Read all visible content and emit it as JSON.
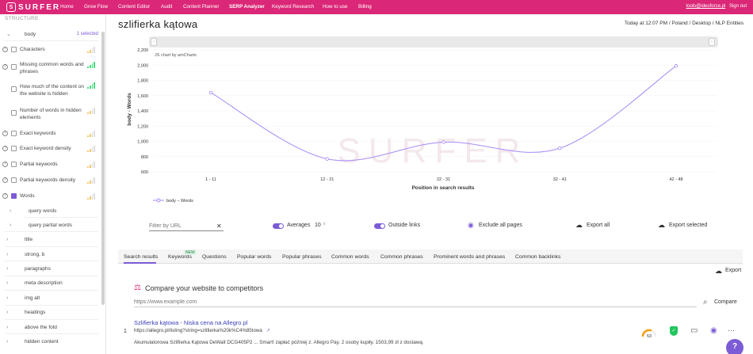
{
  "topbar": {
    "logo_text": "SURFER",
    "logo_mark": "S",
    "nav": [
      "Home",
      "Grow Flow",
      "Content Editor",
      "Audit",
      "Content Planner",
      "SERP Analyzer",
      "Keyword Research",
      "How to use",
      "Billing"
    ],
    "active_nav": "SERP Analyzer",
    "email": "tools@ideoforce.pl",
    "signout": "Sign out",
    "bg_color": "#db2777"
  },
  "sidebar": {
    "title": "STRUCTURE",
    "body_label": "body",
    "body_selected": "1 selected",
    "items": [
      {
        "label": "Characters",
        "help": true,
        "checked": false
      },
      {
        "label": "Missing common words and phrases",
        "help": true,
        "checked": false
      },
      {
        "label": "How much of the content on the website is hidden",
        "help": false,
        "checked": false
      },
      {
        "label": "Number of words in hidden elements",
        "help": false,
        "checked": false
      },
      {
        "label": "Exact keywords",
        "help": true,
        "checked": false
      },
      {
        "label": "Exact keyword density",
        "help": true,
        "checked": false
      },
      {
        "label": "Partial keywords",
        "help": true,
        "checked": false
      },
      {
        "label": "Partial keywords density",
        "help": true,
        "checked": false
      },
      {
        "label": "Words",
        "help": true,
        "checked": true
      }
    ],
    "sub_items": [
      "query words",
      "query partial words"
    ],
    "sections": [
      "title",
      "strong, b",
      "paragraphs",
      "meta description",
      "img alt",
      "headings",
      "above the fold",
      "hidden content"
    ]
  },
  "header": {
    "title": "szlifierka kątowa",
    "meta": "Today at 12:07 PM / Poland / Desktop / NLP Entities"
  },
  "chart_data": {
    "type": "line",
    "watermark": "SURFER",
    "amcharts_label": "JS chart by amCharts",
    "ylabel": "body - Words",
    "xlabel": "Position in search results",
    "categories": [
      "1 - 11",
      "12 - 21",
      "22 - 31",
      "32 - 41",
      "42 - 48"
    ],
    "y_ticks": [
      "2,200",
      "2,000",
      "1,800",
      "1,600",
      "1,400",
      "1,200",
      "1,000",
      "800",
      "600"
    ],
    "ylim": [
      600,
      2200
    ],
    "series": [
      {
        "name": "body – Words",
        "values": [
          1640,
          770,
          990,
          910,
          1990
        ]
      }
    ],
    "legend_position": "bottom-left",
    "line_color": "#a78bfa"
  },
  "controls": {
    "filter_placeholder": "Filter by URL",
    "averages_label": "Averages",
    "averages_value": "10",
    "outside_links_label": "Outside links",
    "exclude_all": "Exclude all pages",
    "export_all": "Export all",
    "export_selected": "Export selected"
  },
  "tabs": {
    "items": [
      "Search results",
      "Keywords",
      "Questions",
      "Popular words",
      "Popular phrases",
      "Common words",
      "Common phrases",
      "Prominent words and phrases",
      "Common backlinks"
    ],
    "new_badge": "NEW",
    "active": "Search results"
  },
  "results": {
    "export_label": "Export",
    "compare_title": "Compare your website to competitors",
    "url_placeholder": "https://www.example.com",
    "compare_button": "Compare",
    "rows": [
      {
        "num": "1",
        "title": "Szlifierka kątowa - Niska cena na Allegro.pl",
        "url": "https://allegro.pl/listing?string=szlifierka%20k%C4%85towa",
        "desc": "Akumulatorowa Szlifierka Kątowa DeWalt DCG405P2 ... Smart! zapłać później z. Allegro Pay. 2 osoby kupiły. 1503,99 zł z dostawą.",
        "score": "53"
      }
    ]
  }
}
